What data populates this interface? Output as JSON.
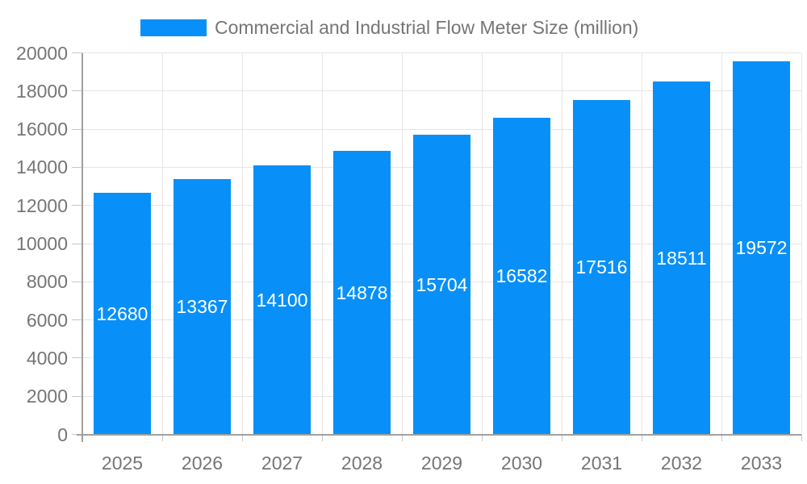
{
  "legend": {
    "label": "Commercial and Industrial Flow Meter Size (million)"
  },
  "chart_data": {
    "type": "bar",
    "title": "Commercial and Industrial Flow Meter Size (million)",
    "series_name": "Commercial and Industrial Flow Meter Size (million)",
    "categories": [
      "2025",
      "2026",
      "2027",
      "2028",
      "2029",
      "2030",
      "2031",
      "2032",
      "2033"
    ],
    "values": [
      12680,
      13367,
      14100,
      14878,
      15704,
      16582,
      17516,
      18511,
      19572
    ],
    "xlabel": "",
    "ylabel": "",
    "ylim": [
      0,
      20000
    ],
    "ytick_interval": 2000,
    "yticks": [
      0,
      2000,
      4000,
      6000,
      8000,
      10000,
      12000,
      14000,
      16000,
      18000,
      20000
    ],
    "grid": true,
    "legend_position": "top",
    "value_labels": "inside-center-white",
    "colors": {
      "bar": "#0890f8",
      "value_label": "#ffffff",
      "axis_text": "#757575",
      "gridline": "#e6e6e6",
      "tick": "#c6c6c6",
      "axis_line": "#a0a0a0",
      "background": "#ffffff"
    }
  }
}
